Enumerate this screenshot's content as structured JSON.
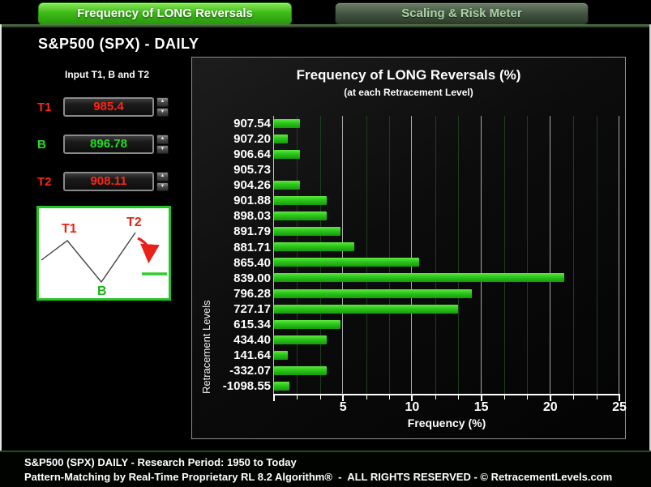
{
  "tabs": [
    {
      "label": "Frequency of LONG Reversals",
      "active": true
    },
    {
      "label": "Scaling & Risk Meter",
      "active": false
    }
  ],
  "page_title": "S&P500 (SPX) - DAILY",
  "inputs": {
    "title": "Input T1, B and T2",
    "fields": [
      {
        "label": "T1",
        "value": "985.4",
        "color": "#ff2418"
      },
      {
        "label": "B",
        "value": "896.78",
        "color": "#25dd25"
      },
      {
        "label": "T2",
        "value": "908.11",
        "color": "#ff2418"
      }
    ]
  },
  "icons": {
    "spinner_up": "▲",
    "spinner_down": "▼"
  },
  "diagram": {
    "t1": "T1",
    "b": "B",
    "t2": "T2",
    "t_color": "#e82218",
    "b_color": "#1db41d",
    "line_color": "#444444",
    "target_color": "#2ecc2e"
  },
  "chart_data": {
    "type": "bar",
    "orientation": "horizontal",
    "title": "Frequency of LONG Reversals (%)",
    "subtitle": "(at each Retracement Level)",
    "xlabel": "Frequency (%)",
    "ylabel": "Retracement Levels",
    "xlim": [
      0,
      25
    ],
    "x_ticks": [
      5,
      10,
      15,
      20,
      25
    ],
    "minor_divisions_per_major": 3,
    "grid": true,
    "legend": false,
    "bar_color": "#2cc51c",
    "categories": [
      "907.54",
      "907.20",
      "906.64",
      "905.73",
      "904.26",
      "901.88",
      "898.03",
      "891.79",
      "881.71",
      "865.40",
      "839.00",
      "796.28",
      "727.17",
      "615.34",
      "434.40",
      "141.64",
      "-332.07",
      "-1098.55"
    ],
    "values": [
      1.9,
      1.0,
      1.9,
      0,
      1.9,
      3.8,
      3.8,
      4.8,
      5.8,
      10.5,
      21.0,
      14.3,
      13.3,
      4.8,
      3.8,
      1.0,
      3.8,
      1.1
    ]
  },
  "footer": {
    "line1": "S&P500 (SPX) DAILY - Research Period: 1950 to Today",
    "line2": "Pattern-Matching by Real-Time Proprietary RL 8.2 Algorithm®  -  ALL RIGHTS RESERVED - © RetracementLevels.com"
  }
}
